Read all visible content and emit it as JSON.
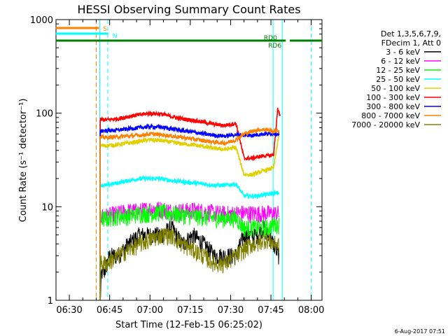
{
  "chart_data": {
    "type": "line",
    "title": "HESSI Observing Summary Count Rates",
    "xlabel": "Start Time (12-Feb-15 06:25:02)",
    "ylabel": "Count Rate (s⁻¹ detector⁻¹)",
    "yscale": "log",
    "ylim": [
      1,
      1000
    ],
    "y_ticks": [
      1,
      10,
      100,
      1000
    ],
    "y_tick_labels": [
      "1",
      "10",
      "100",
      "1000"
    ],
    "x_range": [
      "06:25:02",
      "08:04:00"
    ],
    "x_ticks": [
      "06:30",
      "06:45",
      "07:00",
      "07:15",
      "07:30",
      "07:45",
      "08:00"
    ],
    "x_tick_minutes": [
      390,
      405,
      420,
      435,
      450,
      465,
      480
    ],
    "legend_header": [
      "Det 1,3,5,6,7,9,",
      "FDecim 1, Att 0"
    ],
    "legend_position": "right",
    "series": [
      {
        "name": "3 - 6 keV",
        "color": "#000000",
        "x": [
          401.5,
          402,
          403,
          405,
          408,
          412,
          416,
          420,
          424,
          428,
          432,
          436,
          440,
          444,
          448,
          452,
          455,
          458,
          460,
          462,
          464,
          466,
          468
        ],
        "values": [
          1,
          2,
          2,
          3,
          3,
          4,
          5,
          5,
          5,
          6,
          4,
          5,
          4,
          3,
          3,
          3,
          5,
          5,
          5,
          6,
          5,
          4,
          3
        ]
      },
      {
        "name": "6 - 12 keV",
        "color": "#ff00ff",
        "x": [
          401.5,
          404,
          408,
          412,
          416,
          420,
          424,
          428,
          432,
          436,
          440,
          444,
          448,
          452,
          455,
          458,
          460,
          462,
          464,
          466,
          468
        ],
        "values": [
          8,
          8,
          8.5,
          9,
          9,
          9.5,
          9.5,
          9,
          9,
          9.2,
          9,
          8.6,
          8.4,
          8.5,
          8.6,
          8.5,
          8.5,
          8.5,
          8.5,
          8.5,
          8.5
        ]
      },
      {
        "name": "12 - 25 keV",
        "color": "#00ff00",
        "x": [
          401.5,
          404,
          408,
          412,
          416,
          420,
          424,
          428,
          432,
          436,
          440,
          444,
          448,
          452,
          455,
          458,
          460,
          462,
          464,
          466,
          468
        ],
        "values": [
          7.5,
          7.5,
          8,
          8,
          8.5,
          8.5,
          8.8,
          8.5,
          8.2,
          8,
          7.8,
          7.6,
          7.5,
          7.6,
          6,
          6,
          6,
          6,
          6,
          6.5,
          6.5
        ]
      },
      {
        "name": "25 - 50 keV",
        "color": "#00ffff",
        "x": [
          401.5,
          404,
          408,
          412,
          416,
          420,
          424,
          428,
          432,
          436,
          440,
          444,
          448,
          452,
          455,
          458,
          460,
          462,
          464,
          466,
          468
        ],
        "values": [
          17,
          17,
          18,
          19,
          20,
          20,
          20,
          19,
          18.5,
          18,
          17.5,
          17,
          17,
          17.5,
          13,
          13,
          13,
          13.5,
          13.5,
          14,
          14
        ]
      },
      {
        "name": "50 - 100 keV",
        "color": "#e0d000",
        "x": [
          401.5,
          404,
          408,
          412,
          416,
          420,
          424,
          428,
          432,
          436,
          440,
          444,
          448,
          452,
          455,
          458,
          460,
          462,
          464,
          466,
          468
        ],
        "values": [
          45,
          45,
          46,
          48,
          50,
          52,
          51,
          49,
          47,
          46,
          44,
          42,
          41,
          43,
          22,
          22,
          23,
          24,
          25,
          26,
          60
        ]
      },
      {
        "name": "100 - 300 keV",
        "color": "#ff0000",
        "x": [
          401.5,
          404,
          408,
          412,
          416,
          420,
          424,
          428,
          432,
          436,
          440,
          444,
          448,
          452,
          455,
          458,
          460,
          462,
          464,
          466,
          467.5,
          468.5
        ],
        "values": [
          85,
          85,
          87,
          92,
          96,
          100,
          98,
          92,
          87,
          84,
          80,
          76,
          74,
          78,
          33,
          33,
          34,
          35,
          35,
          36,
          110,
          90
        ]
      },
      {
        "name": "300 - 800 keV",
        "color": "#0000ff",
        "x": [
          401.5,
          404,
          408,
          412,
          416,
          420,
          424,
          428,
          432,
          436,
          440,
          444,
          448,
          452,
          455,
          458,
          460,
          462,
          464,
          466,
          468
        ],
        "values": [
          65,
          65,
          66,
          68,
          70,
          72,
          71,
          68,
          65,
          63,
          60,
          58,
          57,
          59,
          58,
          58,
          59,
          60,
          60,
          61,
          60
        ]
      },
      {
        "name": "800 - 7000 keV",
        "color": "#ff8000",
        "x": [
          401.5,
          404,
          408,
          412,
          416,
          420,
          424,
          428,
          432,
          436,
          440,
          444,
          448,
          452,
          455,
          458,
          460,
          462,
          464,
          466,
          468
        ],
        "values": [
          55,
          55,
          56,
          57,
          58,
          60,
          59,
          57,
          55,
          53,
          51,
          49,
          48,
          52,
          60,
          64,
          66,
          67,
          66,
          64,
          65
        ]
      },
      {
        "name": "7000 - 20000 keV",
        "color": "#808000",
        "x": [
          401.5,
          404,
          408,
          412,
          416,
          420,
          424,
          428,
          432,
          436,
          440,
          444,
          448,
          452,
          455,
          458,
          460,
          462,
          464,
          466,
          468
        ],
        "values": [
          2.5,
          2.5,
          3,
          3.5,
          4,
          4.5,
          5,
          5,
          4,
          3.5,
          3,
          2.5,
          2.5,
          3,
          3.5,
          4,
          4,
          4.5,
          4.5,
          4,
          4
        ]
      }
    ],
    "annotations": [
      {
        "label": "S",
        "color": "#ff8000",
        "x_start": 385.0,
        "x_end": 401.0
      },
      {
        "label": "N",
        "color": "#00ffff",
        "x_start": 385.0,
        "x_end": 404.5
      },
      {
        "label": "RD0",
        "color": "#008000",
        "x_start": 472.0,
        "x_end": 484.0
      },
      {
        "label": "RD6",
        "color": "#008000",
        "x_start": 385.0,
        "x_end": 470.5
      }
    ],
    "vertical_markers": [
      {
        "x": 400.0,
        "color": "#ff8000",
        "style": "dashed"
      },
      {
        "x": 404.3,
        "color": "#00ffff",
        "style": "dashed"
      },
      {
        "x": 401.3,
        "color": "#00ffff",
        "style": "solid"
      },
      {
        "x": 465.8,
        "color": "#00ffff",
        "style": "solid"
      },
      {
        "x": 469.2,
        "color": "#00ffff",
        "style": "solid"
      },
      {
        "x": 480.0,
        "color": "#00ffff",
        "style": "dashed"
      }
    ],
    "footer": "6-Aug-2017 07:51"
  }
}
